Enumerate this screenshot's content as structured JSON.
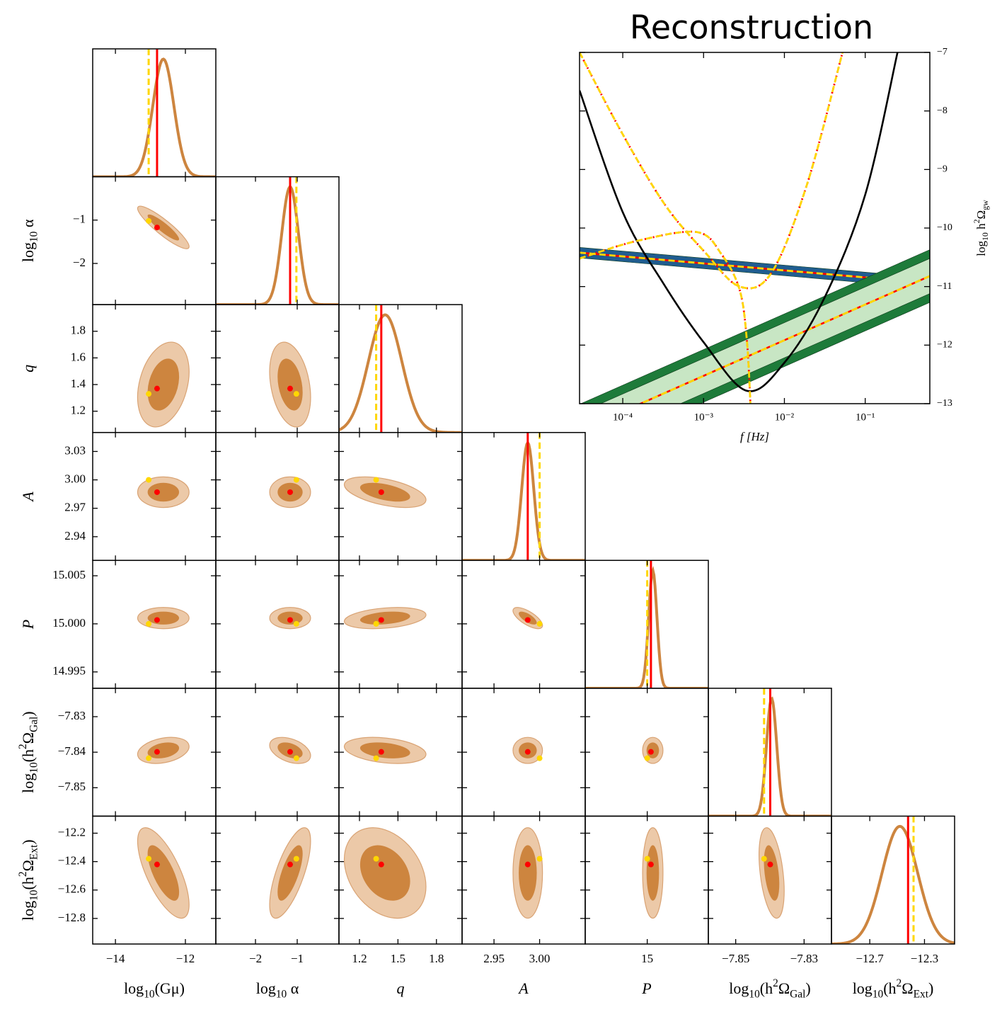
{
  "chart_data": [
    {
      "type": "corner",
      "colors": {
        "line": "#cd853f",
        "inner": "#cd853f",
        "outer": "#ecc9a8",
        "outer_edge": "#d9a374"
      },
      "parameters": [
        {
          "label": [
            {
              "t": "log"
            },
            {
              "sub": "10"
            },
            {
              "t": "(Gμ)"
            }
          ],
          "lim": [
            -14.65,
            -11.13
          ],
          "mean": -12.63,
          "sigma": 0.3,
          "xticks": [
            {
              "value": -14,
              "label": "−14"
            },
            {
              "value": -12,
              "label": "−12"
            }
          ],
          "yticks": []
        },
        {
          "label": [
            {
              "t": "log"
            },
            {
              "sub": "10"
            },
            {
              "t": " α"
            }
          ],
          "lim": [
            -2.95,
            0.0
          ],
          "mean": -1.17,
          "sigma": 0.2,
          "xticks": [
            {
              "value": -2,
              "label": "−2"
            },
            {
              "value": -1,
              "label": "−1"
            }
          ],
          "yticks": [
            {
              "value": -1,
              "label": "−1"
            },
            {
              "value": -2,
              "label": "−2"
            }
          ]
        },
        {
          "label": [
            {
              "t": "q"
            }
          ],
          "lim": [
            1.04,
            2.0
          ],
          "mean": 1.4,
          "sigma": 0.13,
          "xticks": [
            1.2,
            1.5,
            1.8
          ],
          "yticks": [
            1.2,
            1.4,
            1.6,
            1.8
          ]
        },
        {
          "label": [
            {
              "t": "A"
            }
          ],
          "lim": [
            2.915,
            3.05
          ],
          "mean": 2.987,
          "sigma": 0.0066,
          "xticks": [
            2.95,
            {
              "value": 3,
              "label": "3.00"
            }
          ],
          "yticks": [
            2.94,
            2.97,
            {
              "value": 3,
              "label": "3.00"
            },
            3.03
          ]
        },
        {
          "label": [
            {
              "t": "P"
            }
          ],
          "lim": [
            14.9933,
            15.0066
          ],
          "mean": 15.0006,
          "sigma": 0.00045,
          "xticks": [
            15
          ],
          "yticks": [
            14.995,
            {
              "value": 15,
              "label": "15.000"
            },
            15.005
          ]
        },
        {
          "label": [
            {
              "t": "log"
            },
            {
              "sub": "10"
            },
            {
              "t": "(h"
            },
            {
              "sup": "2"
            },
            {
              "t": "Ω"
            },
            {
              "sub": "Gal"
            },
            {
              "t": ")"
            }
          ],
          "lim": [
            -7.858,
            -7.822
          ],
          "mean": -7.8395,
          "sigma": 0.0015,
          "xticks": [
            {
              "value": -7.85,
              "label": "−7.85"
            },
            {
              "value": -7.83,
              "label": "−7.83"
            }
          ],
          "yticks": [
            {
              "value": -7.83,
              "label": "−7.83"
            },
            {
              "value": -7.84,
              "label": "−7.84"
            },
            {
              "value": -7.85,
              "label": "−7.85"
            }
          ]
        },
        {
          "label": [
            {
              "t": "log"
            },
            {
              "sub": "10"
            },
            {
              "t": "(h"
            },
            {
              "sup": "2"
            },
            {
              "t": "Ω"
            },
            {
              "sub": "Ext"
            },
            {
              "t": ")"
            }
          ],
          "lim": [
            -12.98,
            -12.08
          ],
          "mean": -12.48,
          "sigma": 0.13,
          "xticks": [
            {
              "value": -12.7,
              "label": "−12.7"
            },
            {
              "value": -12.3,
              "label": "−12.3"
            }
          ],
          "yticks": [
            {
              "value": -12.2,
              "label": "−12.2"
            },
            {
              "value": -12.4,
              "label": "−12.4"
            },
            {
              "value": -12.6,
              "label": "−12.6"
            },
            {
              "value": -12.8,
              "label": "−12.8"
            }
          ]
        }
      ],
      "correlations": [
        [
          -0.9
        ],
        [
          0.3,
          -0.3
        ],
        [
          0,
          0,
          -0.5
        ],
        [
          0,
          0,
          0.3,
          -0.7
        ],
        [
          0.3,
          -0.4,
          -0.3,
          0,
          0
        ],
        [
          -0.7,
          0.7,
          -0.3,
          0,
          0,
          -0.4
        ]
      ],
      "markers": [
        {
          "color": "#ff0000",
          "dashed": false,
          "values": [
            -12.81,
            -1.17,
            1.37,
            2.987,
            15.0004,
            -7.8399,
            -12.42
          ]
        },
        {
          "color": "#ffd700",
          "dashed": true,
          "values": [
            -13.05,
            -1.02,
            1.33,
            3.0,
            15.0,
            -7.8417,
            -12.38
          ]
        }
      ]
    },
    {
      "type": "line",
      "title": "Reconstruction",
      "xlabel": [
        {
          "t": "f [Hz]"
        }
      ],
      "ylabel": [
        {
          "t": "log"
        },
        {
          "sub": "10"
        },
        {
          "t": " h"
        },
        {
          "sup": "2"
        },
        {
          "t": "Ω"
        },
        {
          "sub": "gw"
        }
      ],
      "xscale": "log",
      "xlim": [
        2.92e-05,
        0.63
      ],
      "ylim": [
        -13,
        -7
      ],
      "xticks": [
        {
          "value": 0.0001,
          "label": "10⁻⁴"
        },
        {
          "value": 0.001,
          "label": "10⁻³"
        },
        {
          "value": 0.01,
          "label": "10⁻²"
        },
        {
          "value": 0.1,
          "label": "10⁻¹"
        }
      ],
      "yticks": [
        {
          "value": -7,
          "label": "−7"
        },
        {
          "value": -8,
          "label": "−8"
        },
        {
          "value": -9,
          "label": "−9"
        },
        {
          "value": -10,
          "label": "−10"
        },
        {
          "value": -11,
          "label": "−11"
        },
        {
          "value": -12,
          "label": "−12"
        },
        {
          "value": -13,
          "label": "−13"
        }
      ],
      "series": [
        {
          "x": [
            2.92e-05,
            0.63
          ],
          "y": [
            -10.42,
            -10.94
          ],
          "band": [
            0.09
          ],
          "band_colors": [
            "#205d90"
          ],
          "colors": [
            "#ff0000",
            "#ffd700"
          ],
          "styles": [
            "solid",
            "dashed"
          ]
        },
        {
          "x": [
            2.92e-05,
            0.63
          ],
          "y": [
            -13.46,
            -10.82
          ],
          "band": [
            0.45,
            0.3
          ],
          "band_colors": [
            "#1e7b3a",
            "#c8e6c4"
          ],
          "colors": [
            "#ff0000",
            "#ffd700"
          ],
          "styles": [
            "solid",
            "dashed"
          ]
        },
        {
          "x": [
            2.92e-05,
            0.0001,
            0.000316,
            0.001,
            0.00343,
            0.01,
            0.0316,
            0.1,
            0.251
          ],
          "y": [
            -7.65,
            -9.73,
            -10.94,
            -11.95,
            -12.78,
            -12.3,
            -11.18,
            -9.43,
            -7.0
          ],
          "colors": [
            "#000000"
          ],
          "styles": [
            "solid"
          ]
        },
        {
          "x": [
            2.92e-05,
            0.0001,
            0.000336,
            0.00102,
            0.0028,
            0.00695,
            0.0191,
            0.0524
          ],
          "y": [
            -7.0,
            -8.4,
            -9.61,
            -10.4,
            -11.0,
            -10.76,
            -9.25,
            -7.0
          ],
          "colors": [
            "#ff0000",
            "#ffd700"
          ],
          "styles": [
            "dotted",
            "dashed"
          ]
        },
        {
          "x": [
            2.92e-05,
            0.00015,
            0.00083,
            0.00169,
            0.0028,
            0.00343,
            0.0038
          ],
          "y": [
            -10.52,
            -10.22,
            -10.07,
            -10.46,
            -11.06,
            -11.91,
            -13.0
          ],
          "colors": [
            "#ff0000",
            "#ffd700"
          ],
          "styles": [
            "dotted",
            "dashed"
          ]
        }
      ]
    }
  ]
}
